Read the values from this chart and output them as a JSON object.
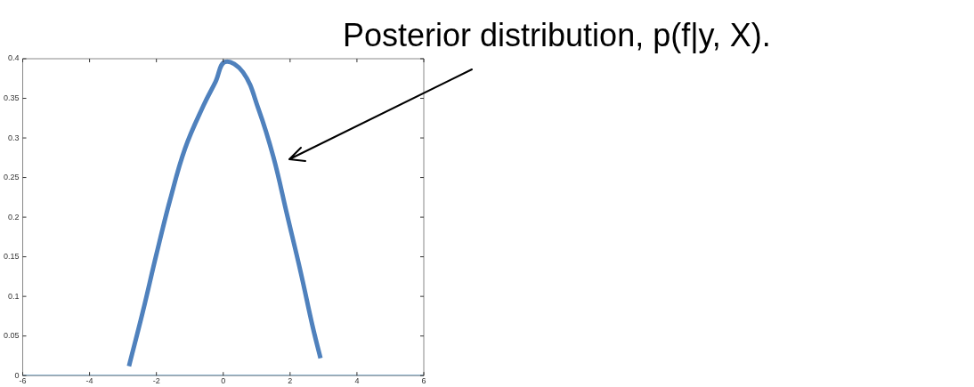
{
  "chart_data": {
    "type": "line",
    "xlim": [
      -6,
      6
    ],
    "xticks": [
      -6,
      -4,
      -2,
      0,
      2,
      4,
      6
    ],
    "ylim": [
      0,
      0.4
    ],
    "yticks": [
      0,
      0.05,
      0.1,
      0.15,
      0.2,
      0.25,
      0.3,
      0.35,
      0.4
    ],
    "grid": false,
    "legend": false,
    "marker": "none",
    "line_style": "solid",
    "series": [
      {
        "color": "#6fb3e0",
        "x": [
          -6,
          6
        ],
        "values": [
          0,
          0
        ]
      },
      {
        "color": "#4f81bd",
        "x": [
          -2.82,
          -2.41,
          -2.0,
          -1.59,
          -1.14,
          -0.59,
          -0.23,
          0.05,
          0.59,
          1.05,
          1.5,
          1.91,
          2.32,
          2.68,
          2.91
        ],
        "values": [
          0.012,
          0.08,
          0.153,
          0.222,
          0.287,
          0.341,
          0.371,
          0.396,
          0.383,
          0.337,
          0.276,
          0.203,
          0.13,
          0.061,
          0.022
        ]
      }
    ],
    "annotations": [
      "Posterior distribution, p(f|y, X)."
    ]
  }
}
